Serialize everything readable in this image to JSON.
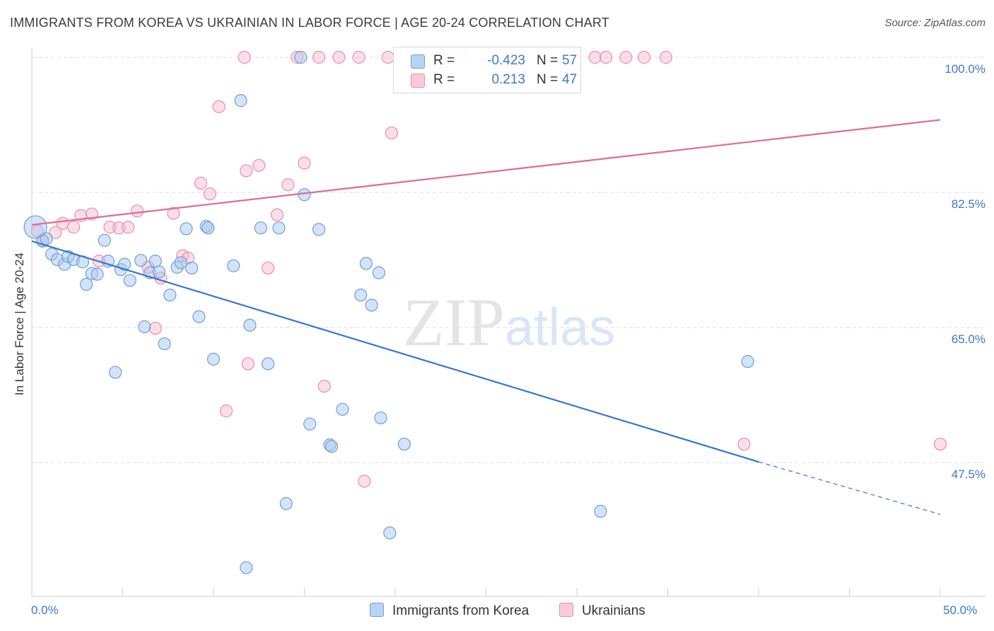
{
  "title": "IMMIGRANTS FROM KOREA VS UKRAINIAN IN LABOR FORCE | AGE 20-24 CORRELATION CHART",
  "source": "Source: ZipAtlas.com",
  "watermark": "ZIPatlas",
  "colors": {
    "korea_fill": "#a9c8f0",
    "korea_stroke": "#6f9fd8",
    "korea_line": "#3574d0",
    "ukr_fill": "#f5b9cb",
    "ukr_stroke": "#e88fab",
    "ukr_line": "#e06a93",
    "grid": "#dcdcdc",
    "tick_text": "#3f78c9"
  },
  "legend_top": {
    "rows": [
      {
        "r_label": "R =",
        "r_value": "-0.423",
        "n_label": "N =",
        "n_value": "57"
      },
      {
        "r_label": "R =",
        "r_value": "0.213",
        "n_label": "N =",
        "n_value": "47"
      }
    ]
  },
  "legend_bottom": {
    "korea": "Immigrants from Korea",
    "ukr": "Ukrainians"
  },
  "chart_data": {
    "type": "scatter",
    "title": "IMMIGRANTS FROM KOREA VS UKRAINIAN IN LABOR FORCE | AGE 20-24 CORRELATION CHART",
    "xlabel": "",
    "ylabel": "In Labor Force | Age 20-24",
    "xlim": [
      0,
      50
    ],
    "ylim": [
      33,
      102
    ],
    "x_tick_labels": [
      {
        "value": 0,
        "label": "0.0%"
      },
      {
        "value": 50,
        "label": "50.0%"
      }
    ],
    "y_tick_labels": [
      {
        "value": 100,
        "label": "100.0%"
      },
      {
        "value": 82.5,
        "label": "82.5%"
      },
      {
        "value": 65,
        "label": "65.0%"
      },
      {
        "value": 47.5,
        "label": "47.5%"
      }
    ],
    "grid": true,
    "legend_position": "top-center",
    "series": [
      {
        "name": "Immigrants from Korea",
        "r": -0.423,
        "n": 57,
        "trend": {
          "x0": 0,
          "y0": 76.2,
          "x1": 40,
          "y1": 47.6,
          "dashed_to_x": 50,
          "dashed_to_y": 40.8
        },
        "points": [
          [
            0.2,
            78.0
          ],
          [
            0.6,
            76.2
          ],
          [
            0.8,
            76.5
          ],
          [
            1.1,
            74.5
          ],
          [
            1.4,
            73.8
          ],
          [
            1.8,
            73.2
          ],
          [
            2.0,
            74.2
          ],
          [
            2.3,
            73.8
          ],
          [
            2.8,
            73.5
          ],
          [
            3.0,
            70.6
          ],
          [
            3.3,
            72.0
          ],
          [
            3.6,
            71.9
          ],
          [
            4.0,
            76.3
          ],
          [
            4.2,
            73.6
          ],
          [
            4.6,
            59.2
          ],
          [
            4.9,
            72.5
          ],
          [
            5.1,
            73.2
          ],
          [
            5.4,
            71.1
          ],
          [
            6.0,
            73.7
          ],
          [
            6.2,
            65.1
          ],
          [
            6.5,
            72.1
          ],
          [
            6.8,
            73.6
          ],
          [
            7.0,
            72.2
          ],
          [
            7.3,
            62.9
          ],
          [
            7.6,
            69.2
          ],
          [
            8.0,
            72.8
          ],
          [
            8.2,
            73.4
          ],
          [
            8.5,
            77.8
          ],
          [
            8.8,
            72.7
          ],
          [
            9.2,
            66.4
          ],
          [
            9.6,
            78.1
          ],
          [
            9.7,
            77.9
          ],
          [
            10.0,
            60.9
          ],
          [
            11.1,
            73.0
          ],
          [
            11.5,
            94.4
          ],
          [
            11.8,
            33.9
          ],
          [
            12.0,
            65.3
          ],
          [
            12.6,
            77.9
          ],
          [
            13.0,
            60.3
          ],
          [
            13.6,
            77.9
          ],
          [
            14.0,
            42.2
          ],
          [
            15.0,
            82.2
          ],
          [
            15.3,
            52.5
          ],
          [
            15.8,
            77.7
          ],
          [
            16.4,
            49.8
          ],
          [
            16.5,
            49.6
          ],
          [
            17.1,
            54.4
          ],
          [
            18.1,
            69.2
          ],
          [
            18.4,
            73.3
          ],
          [
            18.7,
            67.9
          ],
          [
            19.1,
            72.1
          ],
          [
            19.2,
            53.3
          ],
          [
            19.7,
            38.4
          ],
          [
            20.5,
            49.9
          ],
          [
            31.3,
            41.2
          ],
          [
            39.4,
            60.6
          ],
          [
            14.8,
            100.0
          ]
        ]
      },
      {
        "name": "Ukrainians",
        "r": 0.213,
        "n": 47,
        "trend": {
          "x0": 0,
          "y0": 78.3,
          "x1": 50,
          "y1": 91.9
        },
        "points": [
          [
            0.3,
            77.5
          ],
          [
            0.6,
            76.3
          ],
          [
            1.3,
            77.3
          ],
          [
            1.7,
            78.5
          ],
          [
            2.3,
            78.0
          ],
          [
            2.7,
            79.5
          ],
          [
            3.3,
            79.7
          ],
          [
            3.7,
            73.6
          ],
          [
            4.3,
            78.0
          ],
          [
            4.8,
            77.9
          ],
          [
            5.3,
            78.0
          ],
          [
            5.8,
            80.1
          ],
          [
            6.4,
            72.8
          ],
          [
            6.8,
            64.9
          ],
          [
            7.1,
            71.4
          ],
          [
            7.8,
            79.8
          ],
          [
            8.3,
            74.3
          ],
          [
            8.6,
            74.0
          ],
          [
            9.3,
            83.7
          ],
          [
            9.8,
            82.3
          ],
          [
            10.3,
            93.6
          ],
          [
            10.7,
            54.2
          ],
          [
            11.7,
            100.0
          ],
          [
            11.8,
            85.3
          ],
          [
            11.9,
            60.3
          ],
          [
            12.5,
            86.0
          ],
          [
            13.0,
            72.7
          ],
          [
            13.5,
            79.6
          ],
          [
            14.1,
            83.5
          ],
          [
            14.6,
            100.0
          ],
          [
            15.0,
            86.3
          ],
          [
            15.8,
            100.0
          ],
          [
            16.1,
            57.4
          ],
          [
            16.9,
            100.0
          ],
          [
            18.0,
            100.0
          ],
          [
            18.3,
            45.1
          ],
          [
            19.6,
            100.0
          ],
          [
            19.8,
            90.2
          ],
          [
            23.6,
            100.0
          ],
          [
            25.1,
            100.0
          ],
          [
            31.0,
            100.0
          ],
          [
            31.6,
            100.0
          ],
          [
            32.7,
            100.0
          ],
          [
            33.7,
            100.0
          ],
          [
            34.9,
            100.0
          ],
          [
            39.2,
            49.9
          ],
          [
            50.0,
            49.9
          ]
        ]
      }
    ]
  }
}
